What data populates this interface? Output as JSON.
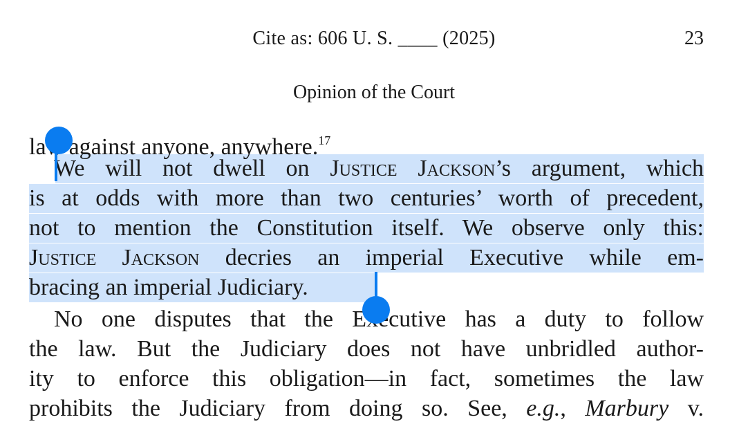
{
  "header": {
    "cite": "Cite as:  606 U. S. ____ (2025)",
    "page_number": "23",
    "section_title": "Opinion of the Court"
  },
  "body": {
    "line1_text": "law against anyone, anywhere.",
    "line1_footnote": "17",
    "selected": {
      "l2_a": "We will not dwell on ",
      "l2_sc1": "Justice Jackson",
      "l2_b": "’s argument, which",
      "l3": "is at odds with more than two centuries’ worth of precedent,",
      "l4": "not to mention the Constitution itself.  We observe only this:",
      "l5_sc": "Justice Jackson",
      "l5_b": " decries an imperial Executive while em-",
      "l6": "bracing an imperial Judiciary."
    },
    "l7": "No one disputes that the Executive has a duty to follow",
    "l8": "the law.  But the Judiciary does not have unbridled author-",
    "l9": "ity to enforce this obligation—in fact, sometimes the law",
    "l10_a": "prohibits the Judiciary from doing so.  See, ",
    "l10_eg": "e.g.",
    "l10_b": ", ",
    "l10_marbury": "Marbury",
    "l10_c": " v."
  },
  "selection": {
    "color": "#cfe3fb",
    "handle_color": "#0a7cf0"
  }
}
